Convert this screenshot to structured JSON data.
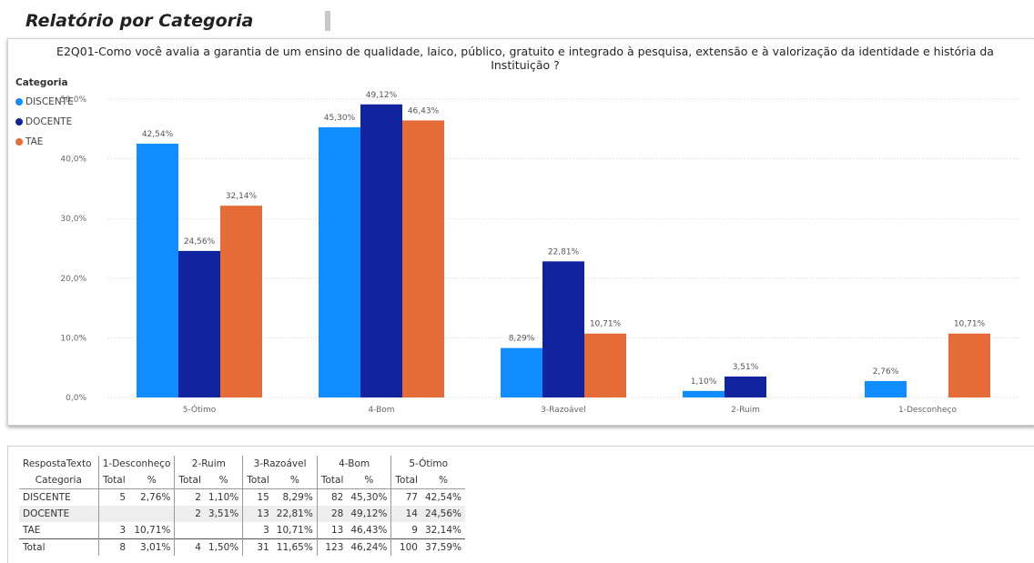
{
  "page": {
    "report_title": "Relatório por Categoria"
  },
  "chart_data": {
    "type": "bar",
    "title_line1": "E2Q01-Como você avalia a garantia de um ensino de qualidade, laico, público, gratuito e integrado à pesquisa, extensão e à valorização da identidade e história da",
    "title_line2": "Instituição ?",
    "legend_title": "Categoria",
    "legend_position": "top-left",
    "categories": [
      "5-Ótimo",
      "4-Bom",
      "3-Razoável",
      "2-Ruim",
      "1-Desconheço"
    ],
    "series": [
      {
        "name": "DISCENTE",
        "color": "#118dff",
        "values": [
          42.54,
          45.3,
          8.29,
          1.1,
          2.76
        ],
        "labels": [
          "42,54%",
          "45,30%",
          "8,29%",
          "1,10%",
          "2,76%"
        ]
      },
      {
        "name": "DOCENTE",
        "color": "#12239e",
        "values": [
          24.56,
          49.12,
          22.81,
          3.51,
          null
        ],
        "labels": [
          "24,56%",
          "49,12%",
          "22,81%",
          "3,51%",
          ""
        ]
      },
      {
        "name": "TAE",
        "color": "#e66c37",
        "values": [
          32.14,
          46.43,
          10.71,
          null,
          10.71
        ],
        "labels": [
          "32,14%",
          "46,43%",
          "10,71%",
          "",
          "10,71%"
        ]
      }
    ],
    "y_ticks": [
      0,
      10,
      20,
      30,
      40,
      50
    ],
    "y_tick_labels": [
      "0,0%",
      "10,0%",
      "20,0%",
      "30,0%",
      "40,0%",
      "50,0%"
    ],
    "ylim": [
      0,
      50
    ],
    "grid": true
  },
  "table": {
    "corner_top": "RespostaTexto",
    "corner_bottom": "Categoria",
    "groups": [
      "1-Desconheço",
      "2-Ruim",
      "3-Razoável",
      "4-Bom",
      "5-Ótimo"
    ],
    "sub_total": "Total",
    "sub_pct": "%",
    "rows": [
      {
        "name": "DISCENTE",
        "cells": [
          "5",
          "2,76%",
          "2",
          "1,10%",
          "15",
          "8,29%",
          "82",
          "45,30%",
          "77",
          "42,54%"
        ]
      },
      {
        "name": "DOCENTE",
        "cells": [
          "",
          "",
          "2",
          "3,51%",
          "13",
          "22,81%",
          "28",
          "49,12%",
          "14",
          "24,56%"
        ]
      },
      {
        "name": "TAE",
        "cells": [
          "3",
          "10,71%",
          "",
          "",
          "3",
          "10,71%",
          "13",
          "46,43%",
          "9",
          "32,14%"
        ]
      },
      {
        "name": "Total",
        "cells": [
          "8",
          "3,01%",
          "4",
          "1,50%",
          "31",
          "11,65%",
          "123",
          "46,24%",
          "100",
          "37,59%"
        ]
      }
    ]
  }
}
